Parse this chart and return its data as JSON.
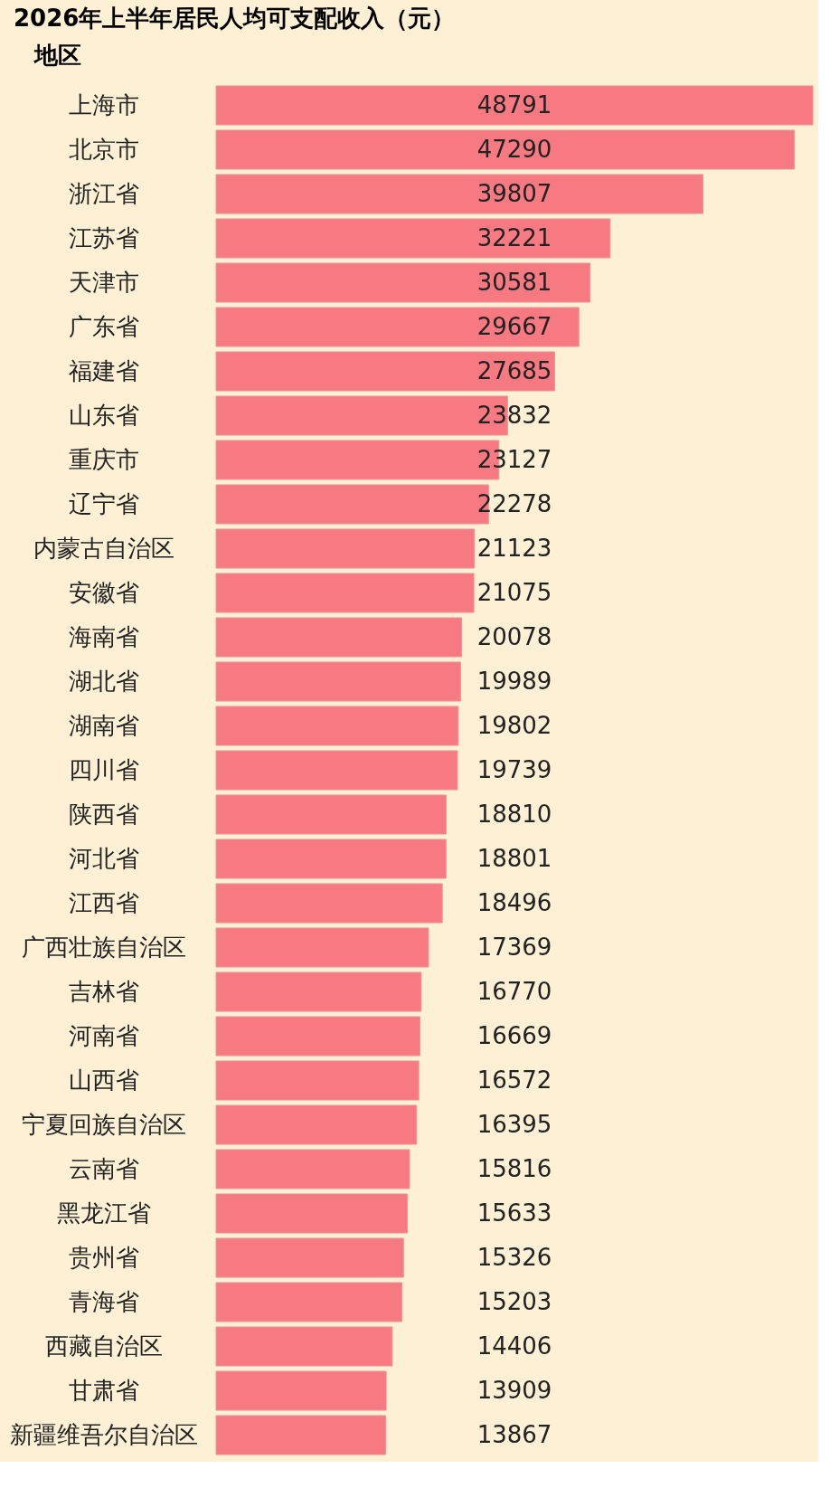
{
  "chart_data": {
    "type": "bar",
    "orientation": "horizontal",
    "title": "2026年上半年居民人均可支配收入（元）",
    "ylabel": "地区",
    "categories": [
      "上海市",
      "北京市",
      "浙江省",
      "江苏省",
      "天津市",
      "广东省",
      "福建省",
      "山东省",
      "重庆市",
      "辽宁省",
      "内蒙古自治区",
      "安徽省",
      "海南省",
      "湖北省",
      "湖南省",
      "四川省",
      "陕西省",
      "河北省",
      "江西省",
      "广西壮族自治区",
      "吉林省",
      "河南省",
      "山西省",
      "宁夏回族自治区",
      "云南省",
      "黑龙江省",
      "贵州省",
      "青海省",
      "西藏自治区",
      "甘肃省",
      "新疆维吾尔自治区"
    ],
    "values": [
      48791,
      47290,
      39807,
      32221,
      30581,
      29667,
      27685,
      23832,
      23127,
      22278,
      21123,
      21075,
      20078,
      19989,
      19802,
      19739,
      18810,
      18801,
      18496,
      17369,
      16770,
      16669,
      16572,
      16395,
      15816,
      15633,
      15326,
      15203,
      14406,
      13909,
      13867
    ],
    "color": "#f77a82",
    "data_labels": true,
    "grid": false
  }
}
